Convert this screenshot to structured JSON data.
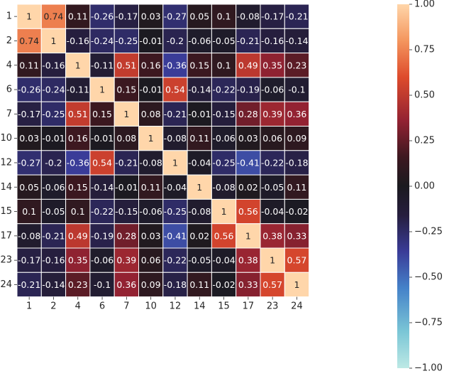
{
  "chart_data": {
    "type": "heatmap",
    "labels": [
      "1",
      "2",
      "4",
      "6",
      "7",
      "10",
      "12",
      "14",
      "15",
      "17",
      "23",
      "24"
    ],
    "matrix": [
      [
        1,
        0.74,
        0.11,
        -0.26,
        -0.17,
        0.03,
        -0.27,
        0.05,
        0.1,
        -0.08,
        -0.17,
        -0.21
      ],
      [
        0.74,
        1,
        -0.16,
        -0.24,
        -0.25,
        -0.01,
        -0.2,
        -0.06,
        -0.05,
        -0.21,
        -0.16,
        -0.14
      ],
      [
        0.11,
        -0.16,
        1,
        -0.11,
        0.51,
        0.16,
        -0.36,
        0.15,
        0.1,
        0.49,
        0.35,
        0.23
      ],
      [
        -0.26,
        -0.24,
        -0.11,
        1,
        0.15,
        -0.01,
        0.54,
        -0.14,
        -0.22,
        -0.19,
        -0.06,
        -0.1
      ],
      [
        -0.17,
        -0.25,
        0.51,
        0.15,
        1,
        0.08,
        -0.21,
        -0.01,
        -0.15,
        0.28,
        0.39,
        0.36
      ],
      [
        0.03,
        -0.01,
        0.16,
        -0.01,
        0.08,
        1,
        -0.08,
        0.11,
        -0.06,
        0.03,
        0.06,
        0.09
      ],
      [
        -0.27,
        -0.2,
        -0.36,
        0.54,
        -0.21,
        -0.08,
        1,
        -0.04,
        -0.25,
        -0.41,
        -0.22,
        -0.18
      ],
      [
        0.05,
        -0.06,
        0.15,
        -0.14,
        -0.01,
        0.11,
        -0.04,
        1,
        -0.08,
        0.02,
        -0.05,
        0.11
      ],
      [
        0.1,
        -0.05,
        0.1,
        -0.22,
        -0.15,
        -0.06,
        -0.25,
        -0.08,
        1,
        0.56,
        -0.04,
        -0.02
      ],
      [
        -0.08,
        -0.21,
        0.49,
        -0.19,
        0.28,
        0.03,
        -0.41,
        0.02,
        0.56,
        1,
        0.38,
        0.33
      ],
      [
        -0.17,
        -0.16,
        0.35,
        -0.06,
        0.39,
        0.06,
        -0.22,
        -0.05,
        -0.04,
        0.38,
        1,
        0.57
      ],
      [
        -0.21,
        -0.14,
        0.23,
        -0.1,
        0.36,
        0.09,
        -0.18,
        0.11,
        -0.02,
        0.33,
        0.57,
        1
      ]
    ],
    "value_range": [
      -1,
      1
    ],
    "colorbar_ticks": [
      "1.00",
      "0.75",
      "0.50",
      "0.25",
      "0.00",
      "−0.25",
      "−0.50",
      "−0.75",
      "−1.00"
    ],
    "colorbar_tick_values": [
      1,
      0.75,
      0.5,
      0.25,
      0,
      -0.25,
      -0.5,
      -0.75,
      -1
    ],
    "colormap": "icefire",
    "cell_border_color": "#ffffff",
    "title": "",
    "xlabel": "",
    "ylabel": ""
  }
}
